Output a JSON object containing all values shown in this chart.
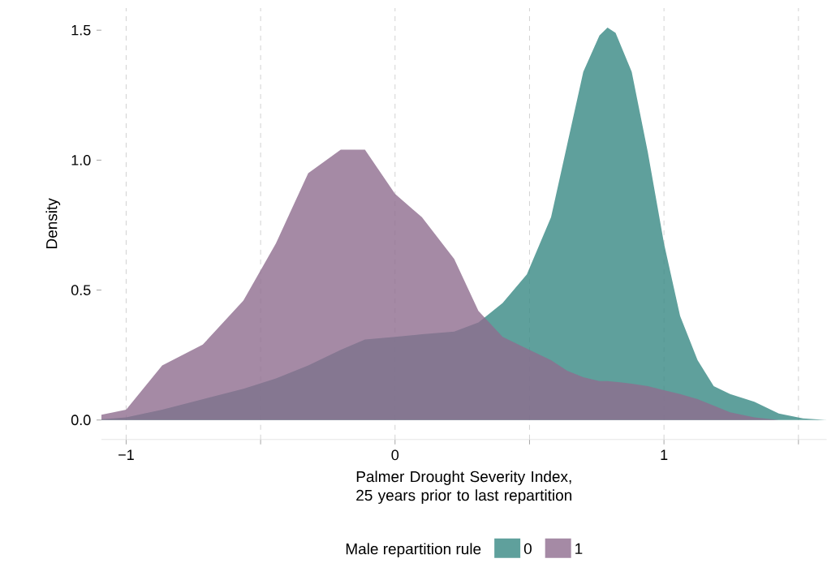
{
  "chart_data": {
    "type": "area",
    "xlabel": "Palmer Drought Severity Index, 25 years prior to last repartition",
    "ylabel": "Density",
    "legend_title": "Male repartition rule",
    "x": [
      -1.092,
      -1.0,
      -0.866,
      -0.715,
      -0.564,
      -0.443,
      -0.323,
      -0.202,
      -0.112,
      0.0,
      0.1,
      0.22,
      0.31,
      0.4,
      0.49,
      0.58,
      0.64,
      0.7,
      0.76,
      0.79,
      0.82,
      0.88,
      0.94,
      1.0,
      1.06,
      1.125,
      1.185,
      1.246,
      1.336,
      1.427,
      1.517,
      1.605
    ],
    "series": [
      {
        "name": "0",
        "color": "#5fa09c",
        "values": [
          0.003,
          0.01,
          0.04,
          0.08,
          0.12,
          0.16,
          0.21,
          0.27,
          0.31,
          0.32,
          0.33,
          0.34,
          0.375,
          0.45,
          0.56,
          0.78,
          1.06,
          1.34,
          1.48,
          1.51,
          1.49,
          1.34,
          1.03,
          0.68,
          0.4,
          0.23,
          0.13,
          0.1,
          0.07,
          0.025,
          0.006,
          0.0
        ]
      },
      {
        "name": "1",
        "color": "#a58aa5",
        "values": [
          0.02,
          0.04,
          0.21,
          0.29,
          0.46,
          0.68,
          0.95,
          1.04,
          1.04,
          0.87,
          0.78,
          0.62,
          0.42,
          0.32,
          0.275,
          0.23,
          0.19,
          0.165,
          0.15,
          0.15,
          0.147,
          0.14,
          0.13,
          0.115,
          0.1,
          0.08,
          0.055,
          0.03,
          0.01,
          0.0,
          0.0,
          0.0
        ]
      }
    ],
    "xlim": [
      -1.092,
      1.605
    ],
    "ylim": [
      -0.075,
      1.585
    ],
    "xticks": [
      {
        "value": -1,
        "label": "−1"
      },
      {
        "value": -0.5,
        "label": null
      },
      0,
      {
        "value": 0.5,
        "label": null
      },
      1,
      {
        "value": 1.5,
        "label": null
      }
    ],
    "yticks": [
      {
        "value": 0,
        "label": "0.0"
      },
      {
        "value": 0.5,
        "label": "0.5"
      },
      {
        "value": 1,
        "label": "1.0"
      },
      {
        "value": 1.5,
        "label": "1.5"
      }
    ],
    "grid": "x",
    "legend": "bottom"
  }
}
